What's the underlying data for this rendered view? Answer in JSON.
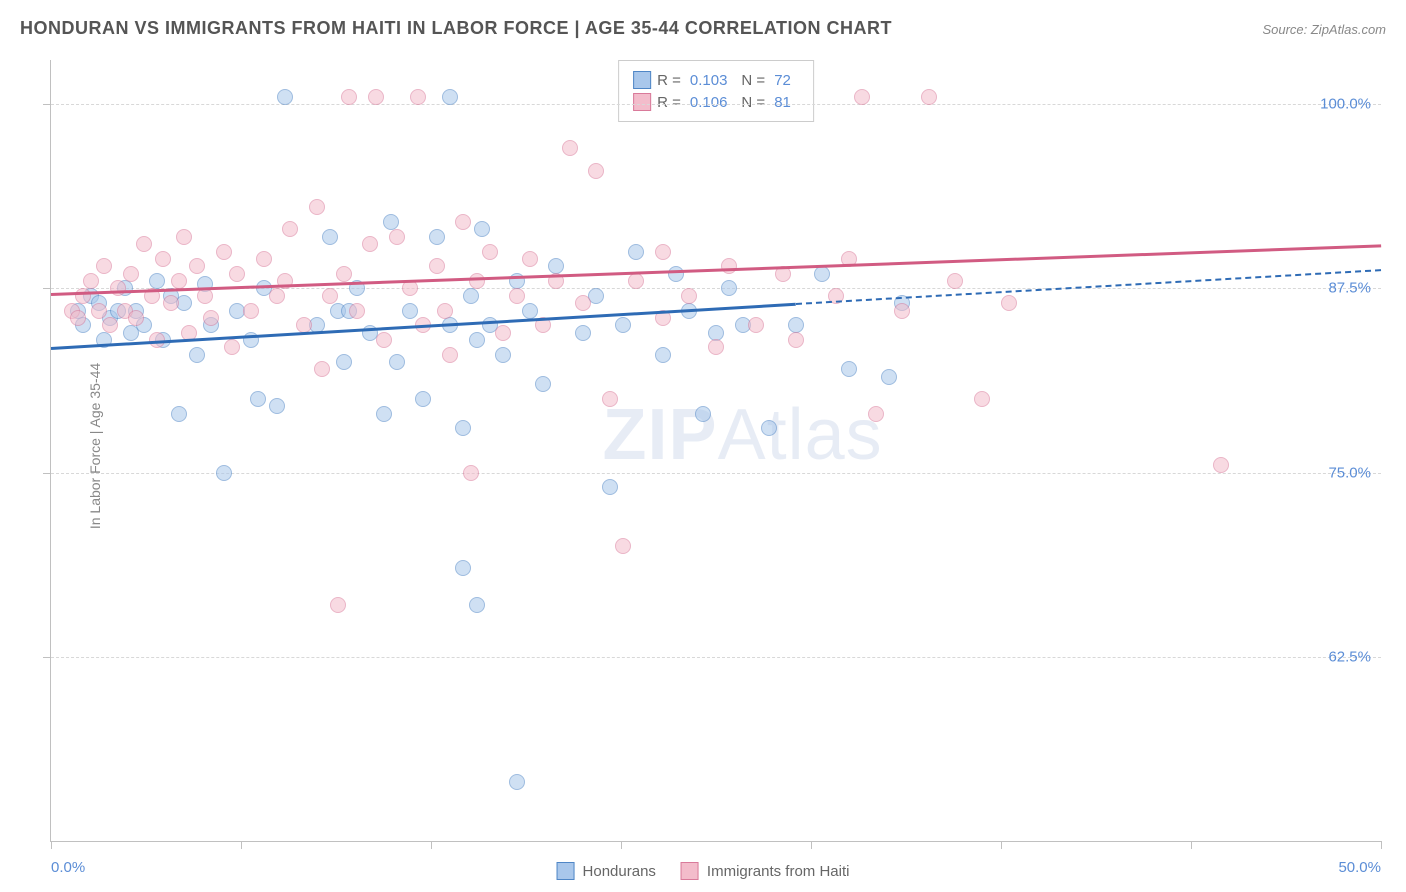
{
  "title": "HONDURAN VS IMMIGRANTS FROM HAITI IN LABOR FORCE | AGE 35-44 CORRELATION CHART",
  "source": "Source: ZipAtlas.com",
  "y_axis_label": "In Labor Force | Age 35-44",
  "watermark_bold": "ZIP",
  "watermark_thin": "Atlas",
  "chart": {
    "type": "scatter",
    "xlim": [
      0,
      50
    ],
    "ylim": [
      50,
      103
    ],
    "x_ticks": [
      0,
      7.14,
      14.28,
      21.42,
      28.56,
      35.7,
      42.84,
      50
    ],
    "x_tick_labels": {
      "0": "0.0%",
      "50": "50.0%"
    },
    "y_gridlines": [
      62.5,
      75.0,
      87.5,
      100.0
    ],
    "y_tick_labels": [
      "62.5%",
      "75.0%",
      "87.5%",
      "100.0%"
    ],
    "background_color": "#ffffff",
    "grid_color": "#d8d8d8",
    "point_radius": 8,
    "point_opacity": 0.55,
    "series": [
      {
        "name": "Hondurans",
        "color_fill": "#a9c7eb",
        "color_stroke": "#4f86c6",
        "r_value": "0.103",
        "n_value": "72",
        "trend": {
          "x0": 0,
          "y0": 83.5,
          "x1": 28,
          "y1": 86.5,
          "x1_dash": 50,
          "y1_dash": 88.8,
          "color": "#2e6bb5"
        },
        "points": [
          [
            1,
            86
          ],
          [
            1.2,
            85
          ],
          [
            1.5,
            87
          ],
          [
            1.8,
            86.5
          ],
          [
            2,
            84
          ],
          [
            2.2,
            85.5
          ],
          [
            2.5,
            86
          ],
          [
            2.8,
            87.5
          ],
          [
            3,
            84.5
          ],
          [
            3.2,
            86
          ],
          [
            3.5,
            85
          ],
          [
            4,
            88
          ],
          [
            4.2,
            84
          ],
          [
            4.5,
            87
          ],
          [
            4.8,
            79
          ],
          [
            5,
            86.5
          ],
          [
            5.5,
            83
          ],
          [
            5.8,
            87.8
          ],
          [
            6,
            85
          ],
          [
            6.5,
            75
          ],
          [
            7,
            86
          ],
          [
            7.5,
            84
          ],
          [
            7.8,
            80
          ],
          [
            8,
            87.5
          ],
          [
            8.5,
            79.5
          ],
          [
            8.8,
            100.5
          ],
          [
            10,
            85
          ],
          [
            10.5,
            91
          ],
          [
            10.8,
            86
          ],
          [
            11,
            82.5
          ],
          [
            11.2,
            86
          ],
          [
            11.5,
            87.5
          ],
          [
            12,
            84.5
          ],
          [
            12.5,
            79
          ],
          [
            12.8,
            92
          ],
          [
            13,
            82.5
          ],
          [
            13.5,
            86
          ],
          [
            14,
            80
          ],
          [
            14.5,
            91
          ],
          [
            15,
            100.5
          ],
          [
            15,
            85
          ],
          [
            15.5,
            68.5
          ],
          [
            15.5,
            78
          ],
          [
            15.8,
            87
          ],
          [
            16,
            84
          ],
          [
            16,
            66
          ],
          [
            16.2,
            91.5
          ],
          [
            16.5,
            85
          ],
          [
            17,
            83
          ],
          [
            17.5,
            88
          ],
          [
            17.5,
            54
          ],
          [
            18,
            86
          ],
          [
            18.5,
            81
          ],
          [
            19,
            89
          ],
          [
            20,
            84.5
          ],
          [
            20.5,
            87
          ],
          [
            21,
            74
          ],
          [
            21.5,
            85
          ],
          [
            22,
            90
          ],
          [
            23,
            83
          ],
          [
            23.5,
            88.5
          ],
          [
            24,
            86
          ],
          [
            24.5,
            79
          ],
          [
            25,
            84.5
          ],
          [
            25.5,
            87.5
          ],
          [
            26,
            85
          ],
          [
            27,
            78
          ],
          [
            28,
            85
          ],
          [
            29,
            88.5
          ],
          [
            30,
            82
          ],
          [
            31.5,
            81.5
          ],
          [
            32,
            86.5
          ]
        ]
      },
      {
        "name": "Immigrants from Haiti",
        "color_fill": "#f3bccb",
        "color_stroke": "#d97a9a",
        "r_value": "0.106",
        "n_value": "81",
        "trend": {
          "x0": 0,
          "y0": 87.2,
          "x1": 50,
          "y1": 90.5,
          "color": "#d15b82"
        },
        "points": [
          [
            0.8,
            86
          ],
          [
            1,
            85.5
          ],
          [
            1.2,
            87
          ],
          [
            1.5,
            88
          ],
          [
            1.8,
            86
          ],
          [
            2,
            89
          ],
          [
            2.2,
            85
          ],
          [
            2.5,
            87.5
          ],
          [
            2.8,
            86
          ],
          [
            3,
            88.5
          ],
          [
            3.2,
            85.5
          ],
          [
            3.5,
            90.5
          ],
          [
            3.8,
            87
          ],
          [
            4,
            84
          ],
          [
            4.2,
            89.5
          ],
          [
            4.5,
            86.5
          ],
          [
            4.8,
            88
          ],
          [
            5,
            91
          ],
          [
            5.2,
            84.5
          ],
          [
            5.5,
            89
          ],
          [
            5.8,
            87
          ],
          [
            6,
            85.5
          ],
          [
            6.5,
            90
          ],
          [
            6.8,
            83.5
          ],
          [
            7,
            88.5
          ],
          [
            7.5,
            86
          ],
          [
            8,
            89.5
          ],
          [
            8.5,
            87
          ],
          [
            8.8,
            88
          ],
          [
            9,
            91.5
          ],
          [
            9.5,
            85
          ],
          [
            10,
            93
          ],
          [
            10.5,
            87
          ],
          [
            10.8,
            66
          ],
          [
            11,
            88.5
          ],
          [
            11.2,
            100.5
          ],
          [
            11.5,
            86
          ],
          [
            12,
            90.5
          ],
          [
            12.2,
            100.5
          ],
          [
            12.5,
            84
          ],
          [
            13,
            91
          ],
          [
            13.5,
            87.5
          ],
          [
            13.8,
            100.5
          ],
          [
            14,
            85
          ],
          [
            14.5,
            89
          ],
          [
            14.8,
            86
          ],
          [
            15,
            83
          ],
          [
            15.5,
            92
          ],
          [
            15.8,
            75
          ],
          [
            16,
            88
          ],
          [
            16.5,
            90
          ],
          [
            17,
            84.5
          ],
          [
            17.5,
            87
          ],
          [
            18,
            89.5
          ],
          [
            18.5,
            85
          ],
          [
            19,
            88
          ],
          [
            19.5,
            97
          ],
          [
            20,
            86.5
          ],
          [
            21,
            80
          ],
          [
            21.5,
            70
          ],
          [
            22,
            88
          ],
          [
            23,
            85.5
          ],
          [
            23,
            90
          ],
          [
            24,
            87
          ],
          [
            25,
            83.5
          ],
          [
            25.5,
            89
          ],
          [
            26.5,
            85
          ],
          [
            27.5,
            88.5
          ],
          [
            28,
            84
          ],
          [
            29.5,
            87
          ],
          [
            30,
            89.5
          ],
          [
            30.5,
            100.5
          ],
          [
            31,
            79
          ],
          [
            32,
            86
          ],
          [
            33,
            100.5
          ],
          [
            34,
            88
          ],
          [
            35,
            80
          ],
          [
            36,
            86.5
          ],
          [
            44,
            75.5
          ],
          [
            20.5,
            95.5
          ],
          [
            10.2,
            82
          ]
        ]
      }
    ]
  },
  "legend_labels": {
    "r_prefix": "R =",
    "n_prefix": "N =",
    "series1": "Hondurans",
    "series2": "Immigrants from Haiti"
  }
}
